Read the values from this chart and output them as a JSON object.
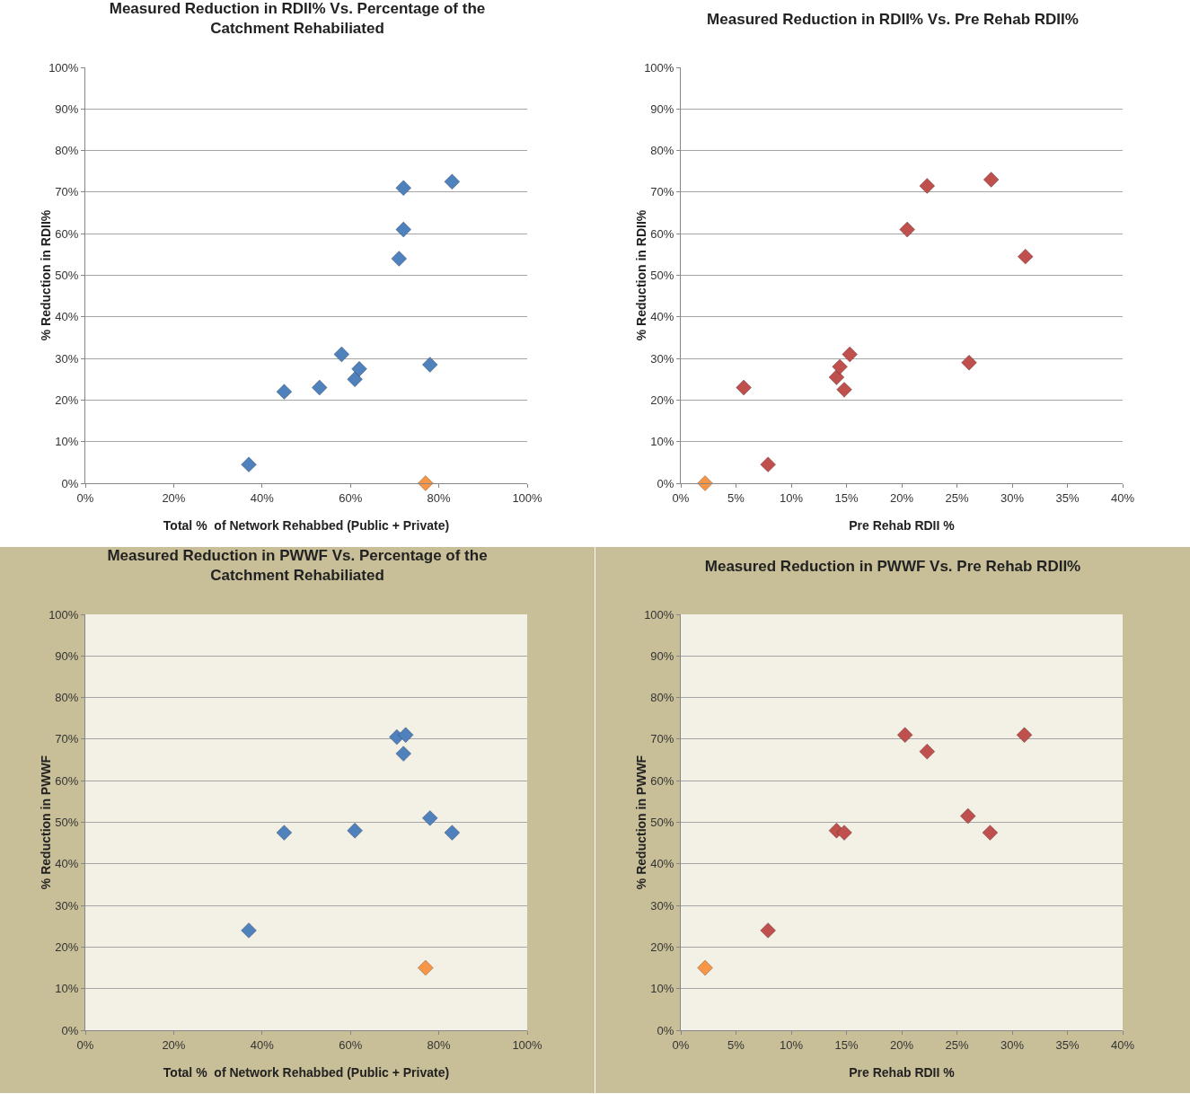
{
  "chart_data": [
    {
      "type": "scatter",
      "title": "Measured Reduction in RDII% Vs. Percentage of the Catchment Rehabiliated",
      "xlabel": "Total %  of Network Rehabbed (Public + Private)",
      "ylabel": "% Reduction in RDII%",
      "marker": "diamond",
      "grid": "y",
      "series": [
        {
          "color": "#4f81bd",
          "x": [
            37,
            45,
            53,
            58,
            61,
            62,
            71,
            72,
            72,
            78,
            83
          ],
          "values": [
            4.5,
            22,
            23,
            31,
            25,
            27.5,
            54,
            71,
            61,
            28.5,
            72.5
          ]
        },
        {
          "color": "#f79646",
          "x": [
            77
          ],
          "values": [
            0
          ]
        }
      ],
      "xlim": [
        0,
        100
      ],
      "xticks": [
        {
          "value": 0,
          "label": "0%"
        },
        {
          "value": 20,
          "label": "20%"
        },
        {
          "value": 40,
          "label": "40%"
        },
        {
          "value": 60,
          "label": "60%"
        },
        {
          "value": 80,
          "label": "80%"
        },
        {
          "value": 100,
          "label": "100%"
        }
      ],
      "ylim": [
        0,
        100
      ],
      "yticks": [
        {
          "value": 0,
          "label": "0%"
        },
        {
          "value": 10,
          "label": "10%"
        },
        {
          "value": 20,
          "label": "20%"
        },
        {
          "value": 30,
          "label": "30%"
        },
        {
          "value": 40,
          "label": "40%"
        },
        {
          "value": 50,
          "label": "50%"
        },
        {
          "value": 60,
          "label": "60%"
        },
        {
          "value": 70,
          "label": "70%"
        },
        {
          "value": 80,
          "label": "80%"
        },
        {
          "value": 90,
          "label": "90%"
        },
        {
          "value": 100,
          "label": "100%"
        }
      ]
    },
    {
      "type": "scatter",
      "title": "Measured Reduction in RDII% Vs. Pre Rehab RDII%",
      "xlabel": "Pre Rehab RDII %",
      "ylabel": "% Reduction in RDII%",
      "marker": "diamond",
      "grid": "y",
      "series": [
        {
          "color": "#c0504d",
          "x": [
            5.7,
            7.9,
            14.1,
            14.4,
            14.8,
            15.3,
            20.5,
            22.3,
            26.1,
            28.1,
            31.2
          ],
          "values": [
            23,
            4.5,
            25.5,
            28,
            22.5,
            31,
            61,
            71.5,
            29,
            73,
            54.5
          ]
        },
        {
          "color": "#f79646",
          "x": [
            2.2
          ],
          "values": [
            0
          ]
        }
      ],
      "xlim": [
        0,
        40
      ],
      "xticks": [
        {
          "value": 0,
          "label": "0%"
        },
        {
          "value": 5,
          "label": "5%"
        },
        {
          "value": 10,
          "label": "10%"
        },
        {
          "value": 15,
          "label": "15%"
        },
        {
          "value": 20,
          "label": "20%"
        },
        {
          "value": 25,
          "label": "25%"
        },
        {
          "value": 30,
          "label": "30%"
        },
        {
          "value": 35,
          "label": "35%"
        },
        {
          "value": 40,
          "label": "40%"
        }
      ],
      "ylim": [
        0,
        100
      ],
      "yticks": [
        {
          "value": 0,
          "label": "0%"
        },
        {
          "value": 10,
          "label": "10%"
        },
        {
          "value": 20,
          "label": "20%"
        },
        {
          "value": 30,
          "label": "30%"
        },
        {
          "value": 40,
          "label": "40%"
        },
        {
          "value": 50,
          "label": "50%"
        },
        {
          "value": 60,
          "label": "60%"
        },
        {
          "value": 70,
          "label": "70%"
        },
        {
          "value": 80,
          "label": "80%"
        },
        {
          "value": 90,
          "label": "90%"
        },
        {
          "value": 100,
          "label": "100%"
        }
      ]
    },
    {
      "type": "scatter",
      "title": "Measured Reduction in PWWF Vs. Percentage of the Catchment Rehabiliated",
      "xlabel": "Total %  of Network Rehabbed (Public + Private)",
      "ylabel": "% Reduction in PWWF",
      "marker": "diamond",
      "grid": "y",
      "series": [
        {
          "color": "#4f81bd",
          "x": [
            37,
            45,
            61,
            70.5,
            72.5,
            72,
            78,
            83
          ],
          "values": [
            24,
            47.5,
            48,
            70.5,
            71,
            66.5,
            51,
            47.5
          ]
        },
        {
          "color": "#f79646",
          "x": [
            77
          ],
          "values": [
            15
          ]
        }
      ],
      "xlim": [
        0,
        100
      ],
      "xticks": [
        {
          "value": 0,
          "label": "0%"
        },
        {
          "value": 20,
          "label": "20%"
        },
        {
          "value": 40,
          "label": "40%"
        },
        {
          "value": 60,
          "label": "60%"
        },
        {
          "value": 80,
          "label": "80%"
        },
        {
          "value": 100,
          "label": "100%"
        }
      ],
      "ylim": [
        0,
        100
      ],
      "yticks": [
        {
          "value": 0,
          "label": "0%"
        },
        {
          "value": 10,
          "label": "10%"
        },
        {
          "value": 20,
          "label": "20%"
        },
        {
          "value": 30,
          "label": "30%"
        },
        {
          "value": 40,
          "label": "40%"
        },
        {
          "value": 50,
          "label": "50%"
        },
        {
          "value": 60,
          "label": "60%"
        },
        {
          "value": 70,
          "label": "70%"
        },
        {
          "value": 80,
          "label": "80%"
        },
        {
          "value": 90,
          "label": "90%"
        },
        {
          "value": 100,
          "label": "100%"
        }
      ]
    },
    {
      "type": "scatter",
      "title": "Measured Reduction in PWWF Vs. Pre Rehab RDII%",
      "xlabel": "Pre Rehab RDII %",
      "ylabel": "% Reduction in PWWF",
      "marker": "diamond",
      "grid": "y",
      "series": [
        {
          "color": "#c0504d",
          "x": [
            7.9,
            14.1,
            14.8,
            20.3,
            22.3,
            26,
            28,
            31.1
          ],
          "values": [
            24,
            48,
            47.5,
            71,
            67,
            51.5,
            47.5,
            71
          ]
        },
        {
          "color": "#f79646",
          "x": [
            2.2
          ],
          "values": [
            15
          ]
        }
      ],
      "xlim": [
        0,
        40
      ],
      "xticks": [
        {
          "value": 0,
          "label": "0%"
        },
        {
          "value": 5,
          "label": "5%"
        },
        {
          "value": 10,
          "label": "10%"
        },
        {
          "value": 15,
          "label": "15%"
        },
        {
          "value": 20,
          "label": "20%"
        },
        {
          "value": 25,
          "label": "25%"
        },
        {
          "value": 30,
          "label": "30%"
        },
        {
          "value": 35,
          "label": "35%"
        },
        {
          "value": 40,
          "label": "40%"
        }
      ],
      "ylim": [
        0,
        100
      ],
      "yticks": [
        {
          "value": 0,
          "label": "0%"
        },
        {
          "value": 10,
          "label": "10%"
        },
        {
          "value": 20,
          "label": "20%"
        },
        {
          "value": 30,
          "label": "30%"
        },
        {
          "value": 40,
          "label": "40%"
        },
        {
          "value": 50,
          "label": "50%"
        },
        {
          "value": 60,
          "label": "60%"
        },
        {
          "value": 70,
          "label": "70%"
        },
        {
          "value": 80,
          "label": "80%"
        },
        {
          "value": 90,
          "label": "90%"
        },
        {
          "value": 100,
          "label": "100%"
        }
      ]
    }
  ]
}
